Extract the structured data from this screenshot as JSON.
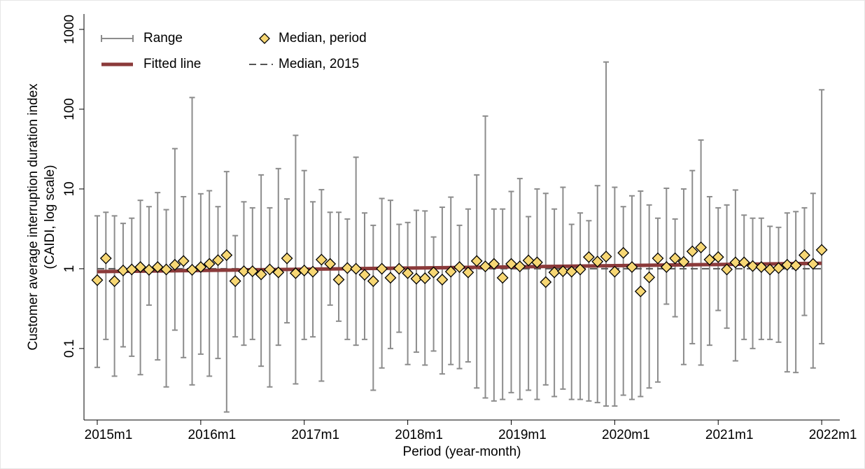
{
  "chart_data": {
    "type": "range",
    "log_y": true,
    "ylabel": [
      "Customer average interruption duration index",
      "(CAIDI, log scale)"
    ],
    "xlabel": "Period (year-month)",
    "x": [
      0,
      1,
      2,
      3,
      4,
      5,
      6,
      7,
      8,
      9,
      10,
      11,
      12,
      13,
      14,
      15,
      16,
      17,
      18,
      19,
      20,
      21,
      22,
      23,
      24,
      25,
      26,
      27,
      28,
      29,
      30,
      31,
      32,
      33,
      34,
      35,
      36,
      37,
      38,
      39,
      40,
      41,
      42,
      43,
      44,
      45,
      46,
      47,
      48,
      49,
      50,
      51,
      52,
      53,
      54,
      55,
      56,
      57,
      58,
      59,
      60,
      61,
      62,
      63,
      64,
      65,
      66,
      67,
      68,
      69,
      70,
      71,
      72,
      73,
      74,
      75,
      76,
      77,
      78,
      79,
      80,
      81,
      82,
      83,
      84
    ],
    "xlim": [
      -1.54,
      86.1
    ],
    "xticks": [
      {
        "value": 0,
        "label": "2015m1"
      },
      {
        "value": 12,
        "label": "2016m1"
      },
      {
        "value": 24,
        "label": "2017m1"
      },
      {
        "value": 36,
        "label": "2018m1"
      },
      {
        "value": 48,
        "label": "2019m1"
      },
      {
        "value": 60,
        "label": "2020m1"
      },
      {
        "value": 72,
        "label": "2021m1"
      },
      {
        "value": 84,
        "label": "2022m1"
      }
    ],
    "ylim": [
      0.0127,
      1560
    ],
    "yticks": [
      0.1,
      1,
      10,
      100,
      1000
    ],
    "legend": "top-left",
    "series": [
      {
        "name": "Range",
        "color": "#8c8c8c",
        "high": [
          4.6,
          5.1,
          4.6,
          3.7,
          4.3,
          7.2,
          6.0,
          9.0,
          5.5,
          32,
          8.0,
          140,
          8.7,
          9.5,
          6.0,
          16.5,
          2.6,
          6.9,
          5.8,
          15,
          5.8,
          18,
          7.5,
          47,
          17,
          6.9,
          9.8,
          5.1,
          5.1,
          4.2,
          25,
          5.0,
          3.5,
          7.6,
          7.2,
          3.6,
          3.8,
          5.4,
          5.3,
          2.5,
          5.9,
          7.9,
          3.5,
          5.6,
          15,
          82,
          5.6,
          5.6,
          9.3,
          13.5,
          4.5,
          10,
          8.8,
          5.6,
          10.5,
          3.6,
          5.0,
          4.0,
          11,
          390,
          10.5,
          6.0,
          8.2,
          9.4,
          6.3,
          4.3,
          10.2,
          4.2,
          10,
          17,
          41,
          8.0,
          5.8,
          6.3,
          9.7,
          4.7,
          4.3,
          4.3,
          3.4,
          3.3,
          5.0,
          5.2,
          5.8,
          8.8,
          175
        ],
        "low": [
          0.058,
          0.13,
          0.045,
          0.105,
          0.08,
          0.047,
          0.35,
          0.072,
          0.033,
          0.17,
          0.077,
          0.035,
          0.085,
          0.045,
          0.075,
          0.016,
          0.14,
          0.11,
          0.13,
          0.06,
          0.033,
          0.11,
          0.21,
          0.036,
          0.13,
          0.14,
          0.039,
          0.35,
          0.22,
          0.13,
          0.11,
          0.13,
          0.03,
          0.057,
          0.1,
          0.16,
          0.063,
          0.09,
          0.062,
          0.093,
          0.048,
          0.063,
          0.056,
          0.068,
          0.032,
          0.024,
          0.022,
          0.023,
          0.028,
          0.023,
          0.03,
          0.023,
          0.035,
          0.025,
          0.031,
          0.023,
          0.023,
          0.022,
          0.021,
          0.019,
          0.019,
          0.026,
          0.023,
          0.025,
          0.032,
          0.038,
          0.36,
          0.25,
          0.063,
          0.115,
          0.062,
          0.11,
          0.3,
          0.18,
          0.07,
          0.13,
          0.1,
          0.13,
          0.13,
          0.12,
          0.051,
          0.05,
          0.26,
          0.057,
          0.115
        ]
      },
      {
        "name": "Median, period",
        "color": "#f7d774",
        "values": [
          0.72,
          1.35,
          0.7,
          0.95,
          0.98,
          1.05,
          0.97,
          1.05,
          0.98,
          1.12,
          1.25,
          0.97,
          1.05,
          1.15,
          1.28,
          1.48,
          0.7,
          0.93,
          0.93,
          0.85,
          0.98,
          0.9,
          1.35,
          0.88,
          0.95,
          0.92,
          1.3,
          1.15,
          0.73,
          1.02,
          1.0,
          0.84,
          0.7,
          1.0,
          0.77,
          1.0,
          0.88,
          0.75,
          0.76,
          0.9,
          0.73,
          0.92,
          1.05,
          0.9,
          1.25,
          1.07,
          1.15,
          0.77,
          1.15,
          1.07,
          1.27,
          1.2,
          0.68,
          0.9,
          0.93,
          0.92,
          0.98,
          1.4,
          1.23,
          1.42,
          0.92,
          1.58,
          1.05,
          0.52,
          0.78,
          1.35,
          1.05,
          1.35,
          1.22,
          1.65,
          1.85,
          1.3,
          1.4,
          0.98,
          1.2,
          1.2,
          1.08,
          1.05,
          0.98,
          1.02,
          1.12,
          1.1,
          1.48,
          1.15,
          1.72
        ]
      },
      {
        "name": "Fitted line",
        "color": "#8b3a3a",
        "x": [
          0,
          84
        ],
        "values": [
          0.92,
          1.17
        ]
      },
      {
        "name": "Median, 2015",
        "color": "#555555",
        "value": 1.0
      }
    ]
  }
}
